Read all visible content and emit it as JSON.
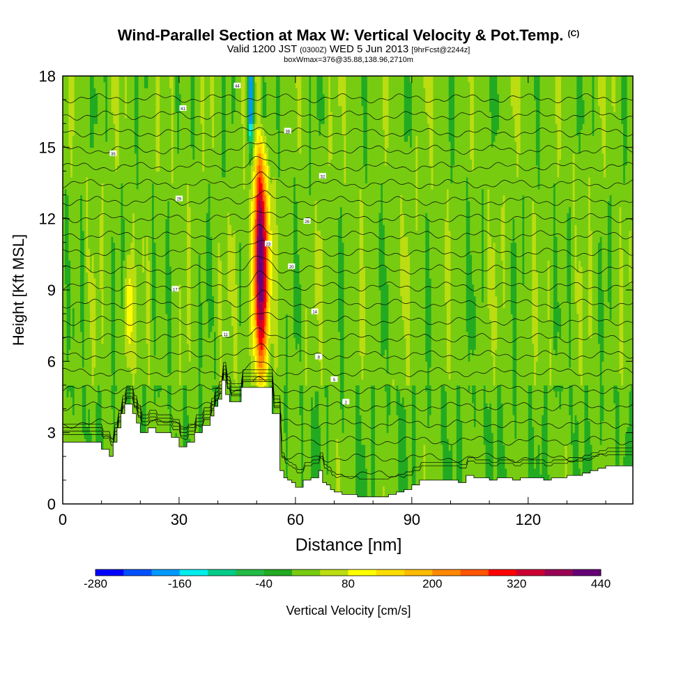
{
  "header": {
    "title": "Wind-Parallel Section at Max W: Vertical Velocity & Pot.Temp.",
    "title_mark": "(C)",
    "valid_prefix": "Valid 1200 JST",
    "valid_zulu": "(0300Z)",
    "valid_date": "WED 5 Jun 2013",
    "forecast": "[9hrFcst@2244z]",
    "box_info": "boxWmax=376@35.88,138.96,2710m"
  },
  "chart_data": {
    "type": "heatmap",
    "xlabel": "Distance [nm]",
    "ylabel": "Height [Kft MSL]",
    "xlim": [
      0,
      147
    ],
    "ylim": [
      0,
      18
    ],
    "x_ticks": [
      0,
      30,
      60,
      90,
      120
    ],
    "y_ticks": [
      0,
      3,
      6,
      9,
      12,
      15,
      18
    ],
    "colorbar": {
      "label": "Vertical Velocity [cm/s]",
      "tick_labels": [
        -280,
        -160,
        -40,
        80,
        200,
        320,
        440
      ],
      "bins": [
        -280,
        -240,
        -200,
        -160,
        -120,
        -80,
        -40,
        0,
        40,
        80,
        120,
        160,
        200,
        240,
        280,
        320,
        360,
        400,
        440
      ],
      "colors": [
        "#0000ff",
        "#0050ff",
        "#0099ff",
        "#00eeee",
        "#00cc88",
        "#22bb44",
        "#22aa22",
        "#77cc11",
        "#bbdd11",
        "#ffff00",
        "#ffdd00",
        "#ffbb00",
        "#ff8800",
        "#ff5500",
        "#ff0000",
        "#cc0033",
        "#990055",
        "#660077"
      ]
    },
    "max_vertical_velocity_cms": 376,
    "features": [
      {
        "name": "strong updraft",
        "x_nm": 51,
        "height_kft": [
          4,
          18
        ],
        "peak_cms": 376
      },
      {
        "name": "downdraft",
        "x_nm": 48.5,
        "height_kft": [
          14,
          18
        ],
        "min_cms": -240
      },
      {
        "name": "weak updraft",
        "x_nm": 17,
        "height_kft": [
          5,
          11
        ],
        "peak_cms": 100
      }
    ],
    "terrain_height_kft": {
      "x_nm": [
        0,
        6,
        10,
        12,
        13,
        14,
        15,
        16,
        17,
        18,
        19,
        20,
        22,
        24,
        26,
        28,
        30,
        32,
        34,
        36,
        38,
        39,
        40,
        41,
        42,
        43,
        44,
        45,
        46,
        47,
        48,
        50,
        52,
        54,
        56,
        57,
        58,
        59,
        60,
        62,
        64,
        66,
        67,
        68,
        69,
        70,
        72,
        74,
        76,
        78,
        80,
        82,
        84,
        86,
        88,
        90,
        92,
        94,
        96,
        98,
        100,
        102,
        104,
        106,
        108,
        110,
        112,
        114,
        116,
        118,
        120,
        122,
        124,
        126,
        128,
        130,
        132,
        134,
        136,
        138,
        140,
        142,
        144,
        147
      ],
      "height_kft": [
        2.6,
        2.6,
        2.3,
        2.0,
        2.6,
        3.2,
        3.8,
        4.2,
        4.2,
        3.8,
        3.4,
        3.0,
        3.2,
        3.0,
        3.0,
        2.8,
        2.4,
        2.6,
        3.0,
        3.3,
        3.7,
        4.1,
        4.4,
        5.2,
        4.6,
        4.3,
        4.3,
        4.3,
        4.9,
        4.9,
        4.9,
        4.9,
        4.9,
        3.8,
        1.4,
        1.1,
        1.0,
        0.9,
        0.7,
        1.0,
        1.1,
        1.4,
        0.9,
        0.8,
        0.6,
        0.5,
        0.4,
        0.4,
        0.3,
        0.3,
        0.3,
        0.3,
        0.4,
        0.5,
        0.6,
        0.8,
        1.0,
        1.0,
        1.0,
        1.0,
        1.0,
        0.9,
        1.2,
        1.1,
        1.1,
        1.0,
        1.1,
        1.1,
        1.0,
        1.1,
        1.1,
        1.1,
        1.0,
        1.1,
        1.1,
        1.2,
        1.2,
        1.3,
        1.4,
        1.5,
        1.6,
        1.6,
        1.6,
        1.6
      ]
    },
    "theta_contour_labels": [
      "2",
      "5",
      "8",
      "11",
      "14",
      "17",
      "20",
      "23",
      "26",
      "29",
      "32",
      "35",
      "38",
      "41",
      "44"
    ]
  }
}
